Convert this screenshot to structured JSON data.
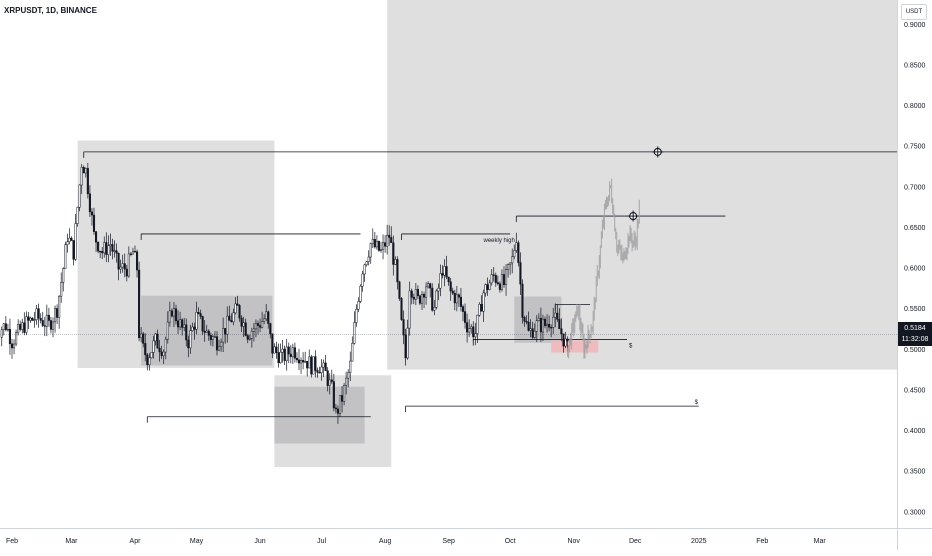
{
  "header": {
    "symbol_title": "XRPUSDT, 1D, BINANCE"
  },
  "price_axis": {
    "currency": "USDT"
  },
  "current_price": {
    "value": "0.5184",
    "countdown": "11:32:08",
    "level": 0.5184
  },
  "colors": {
    "candle": "#131722",
    "zone": "#d9d9db",
    "zone_dark": "#bdbdbf",
    "liquidity": "#f0b8bb",
    "projection": "#9e9ea0",
    "line": "#131722"
  },
  "annotations": {
    "weekly_high_label": "weekly high",
    "sweep_label_1": "$",
    "sweep_label_2": "$",
    "target_icon_name": "crosshair-target-icon"
  },
  "chart_data": {
    "type": "candlestick",
    "title": "XRPUSDT, 1D, BINANCE",
    "ylim": [
      0.28,
      0.93
    ],
    "y_ticks": [
      0.3,
      0.35,
      0.4,
      0.45,
      0.5,
      0.55,
      0.6,
      0.65,
      0.7,
      0.75,
      0.8,
      0.85,
      0.9
    ],
    "y_tick_labels": [
      "0.3000",
      "0.3500",
      "0.4000",
      "0.4500",
      "0.5000",
      "0.5500",
      "0.6000",
      "0.6500",
      "0.7000",
      "0.7500",
      "0.8000",
      "0.8500",
      "0.9000"
    ],
    "x_range_days": [
      0,
      432
    ],
    "x_ticks": [
      {
        "label": "Feb",
        "day": 0
      },
      {
        "label": "Mar",
        "day": 29
      },
      {
        "label": "Apr",
        "day": 60
      },
      {
        "label": "May",
        "day": 90
      },
      {
        "label": "Jun",
        "day": 121
      },
      {
        "label": "Jul",
        "day": 151
      },
      {
        "label": "Aug",
        "day": 182
      },
      {
        "label": "Sep",
        "day": 213
      },
      {
        "label": "Oct",
        "day": 243
      },
      {
        "label": "Nov",
        "day": 274
      },
      {
        "label": "Dec",
        "day": 304
      },
      {
        "label": "2025",
        "day": 335
      },
      {
        "label": "Feb",
        "day": 366
      },
      {
        "label": "Mar",
        "day": 394
      }
    ],
    "price_path": [
      [
        -8,
        0.52
      ],
      [
        -3,
        0.53
      ],
      [
        0,
        0.51
      ],
      [
        6,
        0.53
      ],
      [
        12,
        0.54
      ],
      [
        18,
        0.53
      ],
      [
        22,
        0.55
      ],
      [
        25,
        0.6
      ],
      [
        27,
        0.64
      ],
      [
        30,
        0.62
      ],
      [
        34,
        0.73
      ],
      [
        36,
        0.72
      ],
      [
        40,
        0.64
      ],
      [
        44,
        0.62
      ],
      [
        48,
        0.63
      ],
      [
        52,
        0.6
      ],
      [
        56,
        0.6
      ],
      [
        59,
        0.62
      ],
      [
        61,
        0.6
      ],
      [
        62,
        0.52
      ],
      [
        64,
        0.5
      ],
      [
        66,
        0.49
      ],
      [
        70,
        0.51
      ],
      [
        74,
        0.5
      ],
      [
        78,
        0.55
      ],
      [
        82,
        0.53
      ],
      [
        86,
        0.51
      ],
      [
        90,
        0.54
      ],
      [
        95,
        0.52
      ],
      [
        100,
        0.51
      ],
      [
        105,
        0.53
      ],
      [
        110,
        0.55
      ],
      [
        115,
        0.52
      ],
      [
        120,
        0.53
      ],
      [
        124,
        0.54
      ],
      [
        127,
        0.5
      ],
      [
        132,
        0.49
      ],
      [
        137,
        0.5
      ],
      [
        142,
        0.49
      ],
      [
        146,
        0.48
      ],
      [
        150,
        0.48
      ],
      [
        153,
        0.47
      ],
      [
        156,
        0.45
      ],
      [
        158,
        0.42
      ],
      [
        161,
        0.44
      ],
      [
        165,
        0.48
      ],
      [
        168,
        0.55
      ],
      [
        171,
        0.6
      ],
      [
        175,
        0.63
      ],
      [
        180,
        0.62
      ],
      [
        184,
        0.64
      ],
      [
        187,
        0.6
      ],
      [
        190,
        0.53
      ],
      [
        192,
        0.49
      ],
      [
        194,
        0.58
      ],
      [
        198,
        0.56
      ],
      [
        202,
        0.58
      ],
      [
        206,
        0.55
      ],
      [
        210,
        0.6
      ],
      [
        214,
        0.57
      ],
      [
        218,
        0.56
      ],
      [
        222,
        0.53
      ],
      [
        226,
        0.52
      ],
      [
        230,
        0.57
      ],
      [
        235,
        0.59
      ],
      [
        240,
        0.58
      ],
      [
        244,
        0.61
      ],
      [
        246,
        0.64
      ],
      [
        249,
        0.55
      ],
      [
        252,
        0.52
      ],
      [
        256,
        0.53
      ],
      [
        260,
        0.53
      ],
      [
        264,
        0.54
      ],
      [
        268,
        0.52
      ],
      [
        271,
        0.5
      ]
    ],
    "projection_path": [
      [
        271,
        0.5
      ],
      [
        276,
        0.55
      ],
      [
        279,
        0.5
      ],
      [
        283,
        0.53
      ],
      [
        286,
        0.6
      ],
      [
        289,
        0.67
      ],
      [
        292,
        0.7
      ],
      [
        295,
        0.63
      ],
      [
        298,
        0.61
      ],
      [
        301,
        0.64
      ],
      [
        304,
        0.63
      ],
      [
        306,
        0.67
      ]
    ],
    "levels": [
      {
        "name": "major-high-line",
        "price": 0.743,
        "from_day": 35,
        "to_day": 432
      },
      {
        "name": "target-line",
        "price": 0.664,
        "from_day": 246,
        "to_day": 348
      },
      {
        "name": "range-high-line-1",
        "price": 0.642,
        "from_day": 63,
        "to_day": 170
      },
      {
        "name": "range-high-line-2",
        "price": 0.642,
        "from_day": 190,
        "to_day": 243
      },
      {
        "name": "range-low-line",
        "price": 0.417,
        "from_day": 66,
        "to_day": 175
      },
      {
        "name": "sweep-line-1",
        "price": 0.512,
        "from_day": 225,
        "to_day": 300
      },
      {
        "name": "sweep-line-2",
        "price": 0.43,
        "from_day": 192,
        "to_day": 335
      },
      {
        "name": "inner-range-line",
        "price": 0.555,
        "from_day": 265,
        "to_day": 282
      }
    ],
    "zones": [
      {
        "name": "zone-march-high",
        "from_day": 32,
        "to_day": 128,
        "top": 0.757,
        "bottom": 0.477,
        "shade": "zone"
      },
      {
        "name": "zone-april-range",
        "from_day": 63,
        "to_day": 127,
        "top": 0.566,
        "bottom": 0.48,
        "shade": "zone_dark"
      },
      {
        "name": "zone-july-low-outer",
        "from_day": 128,
        "to_day": 185,
        "top": 0.468,
        "bottom": 0.355,
        "shade": "zone"
      },
      {
        "name": "zone-july-low-inner",
        "from_day": 128,
        "to_day": 172,
        "top": 0.454,
        "bottom": 0.384,
        "shade": "zone_dark"
      },
      {
        "name": "zone-right-premium",
        "from_day": 183,
        "to_day": 432,
        "top": 0.93,
        "bottom": 0.475,
        "shade": "zone"
      },
      {
        "name": "zone-october-range",
        "from_day": 245,
        "to_day": 268,
        "top": 0.565,
        "bottom": 0.508,
        "shade": "zone_dark"
      },
      {
        "name": "zone-liquidity",
        "from_day": 263,
        "to_day": 286,
        "top": 0.511,
        "bottom": 0.496,
        "shade": "liquidity"
      }
    ],
    "targets": [
      {
        "name": "target-major-high",
        "day": 315,
        "price": 0.743
      },
      {
        "name": "target-near",
        "day": 303,
        "price": 0.664
      }
    ]
  }
}
